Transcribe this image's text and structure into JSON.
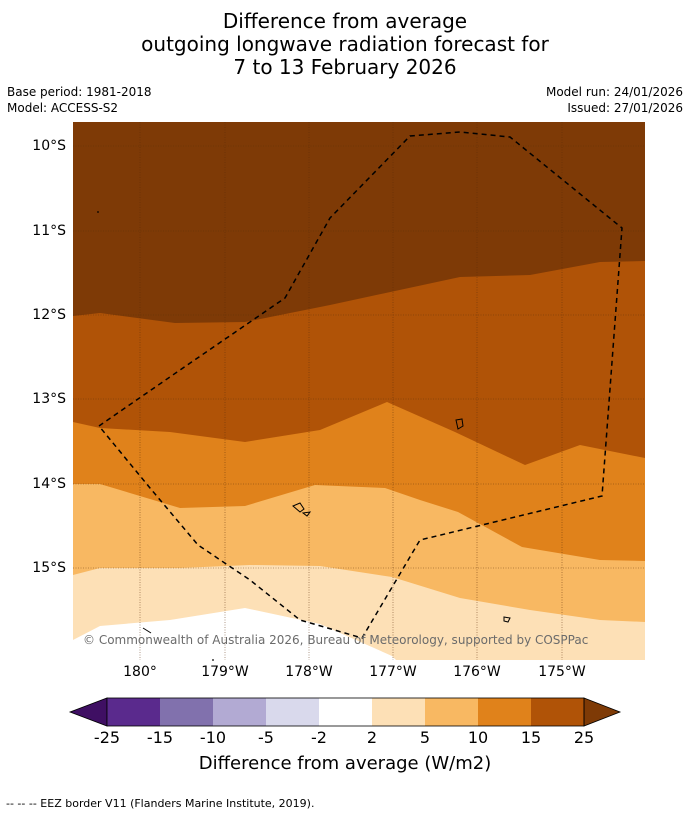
{
  "title": {
    "line1": "Difference from average",
    "line2": "outgoing longwave radiation forecast for",
    "line3": "7 to 13 February 2026"
  },
  "meta": {
    "base_period": "Base period: 1981-2018",
    "model": "Model: ACCESS-S2",
    "model_run": "Model run: 24/01/2026",
    "issued": "Issued: 27/01/2026"
  },
  "map": {
    "lat_labels": [
      "10°S",
      "11°S",
      "12°S",
      "13°S",
      "14°S",
      "15°S"
    ],
    "lon_labels": [
      "180°",
      "179°W",
      "178°W",
      "177°W",
      "176°W",
      "175°W"
    ],
    "copyright": "© Commonwealth of Australia 2026, Bureau of Meteorology, supported by COSPPac",
    "band_colors": [
      "#7e3a06",
      "#b05307",
      "#e0821b",
      "#f8b862",
      "#fde0b6"
    ]
  },
  "colorbar": {
    "title": "Difference from average (W/m2)",
    "tick_labels": [
      "-25",
      "-15",
      "-10",
      "-5",
      "-2",
      "2",
      "5",
      "10",
      "15",
      "25"
    ],
    "colors": {
      "below": "#3f0f63",
      "above": "#7e3a06",
      "bins": [
        "#5a2a8d",
        "#8171ad",
        "#b2aad3",
        "#d9d9ec",
        "#ffffff",
        "#fde0b6",
        "#f8b862",
        "#e0821b",
        "#b05307"
      ]
    }
  },
  "footnote": "--  --  -- EEZ border V11 (Flanders Marine Institute, 2019)."
}
